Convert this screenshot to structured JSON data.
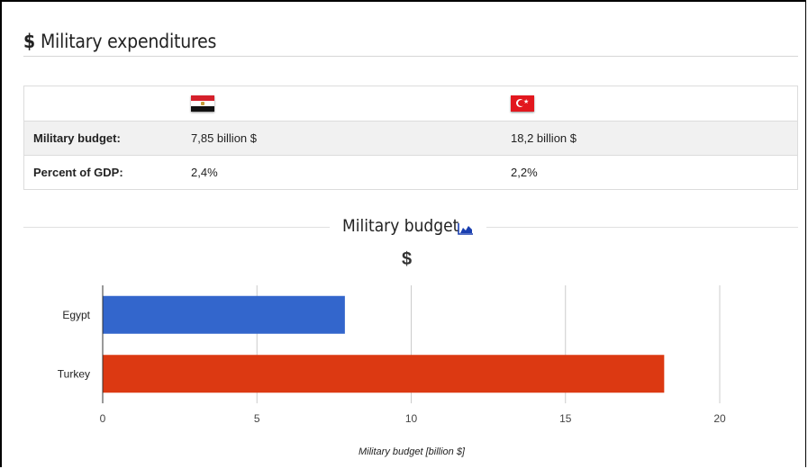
{
  "section": {
    "icon": "dollar-icon",
    "icon_text": "$",
    "title": "Military expenditures"
  },
  "table": {
    "countries": [
      {
        "name": "Egypt",
        "flag": "egypt-flag-icon"
      },
      {
        "name": "Turkey",
        "flag": "turkey-flag-icon"
      }
    ],
    "rows": [
      {
        "label": "Military budget:",
        "values": [
          "7,85 billion $",
          "18,2 billion $"
        ]
      },
      {
        "label": "Percent of GDP:",
        "values": [
          "2,4%",
          "2,2%"
        ]
      }
    ]
  },
  "chart_header": {
    "title": "Military budget",
    "icon": "area-chart-icon",
    "unit_symbol": "$"
  },
  "chart_data": {
    "type": "bar",
    "orientation": "horizontal",
    "categories": [
      "Egypt",
      "Turkey"
    ],
    "values": [
      7.85,
      18.2
    ],
    "colors": [
      "#3366cc",
      "#dc3912"
    ],
    "xlabel": "Military budget [billion $]",
    "xlim": [
      0,
      22
    ],
    "xticks": [
      0,
      5,
      10,
      15,
      20
    ],
    "grid": true
  }
}
